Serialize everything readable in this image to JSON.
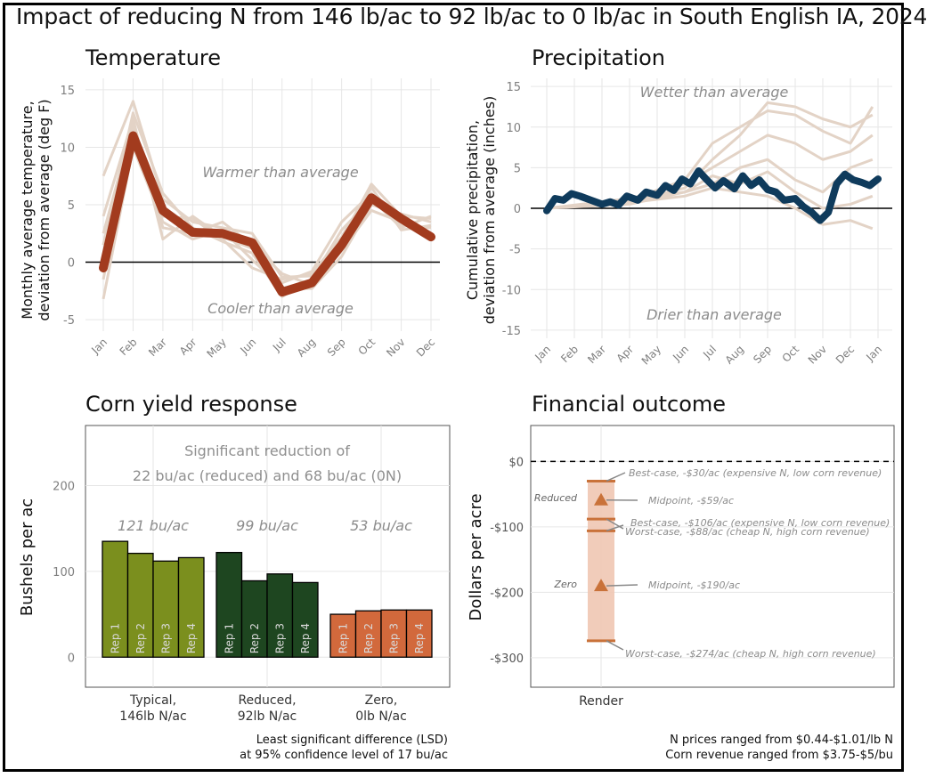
{
  "title": "Impact of reducing N from 146 lb/ac to 92 lb/ac to 0 lb/ac in South English IA, 2024",
  "colors": {
    "temp_main": "#a23b1e",
    "temp_hist": "#e3d3c6",
    "precip_main": "#0f3b5c",
    "precip_hist": "#e3d3c6",
    "typical": "#7b8f1e",
    "reduced": "#1e4620",
    "zero": "#d2693c",
    "fin_band": "#f0c7b2",
    "fin_mark": "#c9723a",
    "annot_text": "#8c8c8c"
  },
  "chart_data": [
    {
      "id": "temperature",
      "type": "line",
      "title": "Temperature",
      "ylabel": [
        "Monthly average temperature,",
        "deviation from average (deg F)"
      ],
      "xlabel": "",
      "categories": [
        "Jan",
        "Feb",
        "Mar",
        "Apr",
        "May",
        "Jun",
        "Jul",
        "Aug",
        "Sep",
        "Oct",
        "Nov",
        "Dec"
      ],
      "yticks": [
        15,
        10,
        5,
        0,
        -5
      ],
      "ytick_labels": [
        "15",
        "10",
        "5",
        "0",
        "-5"
      ],
      "ylim": [
        -6,
        16
      ],
      "grid": true,
      "series": [
        {
          "values": [
            -0.5,
            11,
            4.5,
            2.6,
            2.5,
            1.7,
            -2.6,
            -1.8,
            1.5,
            5.6,
            3.8,
            2.2
          ]
        }
      ],
      "background_series": [
        [
          7.5,
          14,
          5.5,
          3.5,
          3.0,
          2.5,
          -1.3,
          -1.2,
          2.0,
          6.8,
          4.0,
          3.8
        ],
        [
          4.0,
          12.5,
          2.0,
          4.0,
          2.2,
          1.2,
          -1.8,
          -0.8,
          3.5,
          6.0,
          3.2,
          3.0
        ],
        [
          -3.2,
          10,
          3.5,
          2.0,
          2.8,
          0.2,
          -2.2,
          -2.3,
          0.5,
          5.0,
          4.2,
          3.5
        ],
        [
          1.5,
          13,
          6.0,
          3.0,
          1.8,
          0.8,
          -3.0,
          -1.5,
          2.8,
          5.5,
          3.0,
          4.0
        ],
        [
          -1.5,
          11.8,
          3.0,
          2.5,
          3.5,
          1.5,
          -1.0,
          -2.0,
          1.0,
          4.5,
          3.5,
          2.5
        ],
        [
          2.5,
          12.0,
          4.0,
          3.8,
          2.0,
          -0.5,
          -1.5,
          -1.0,
          2.2,
          6.5,
          2.8,
          3.2
        ]
      ],
      "annotations": [
        "Warmer than average",
        "Cooler than average"
      ]
    },
    {
      "id": "precipitation",
      "type": "line",
      "title": "Precipitation",
      "ylabel": [
        "Cumulative precipitation,",
        "deviation from average (inches)"
      ],
      "xlabel": "",
      "x_ticks": [
        "Jan",
        "Feb",
        "Mar",
        "Apr",
        "May",
        "Jun",
        "Jul",
        "Aug",
        "Sep",
        "Oct",
        "Nov",
        "Dec",
        "Jan"
      ],
      "yticks": [
        15,
        10,
        5,
        0,
        -5,
        -10,
        -15
      ],
      "ytick_labels": [
        "15",
        "10",
        "5",
        "0",
        "-5",
        "-10",
        "-15"
      ],
      "ylim": [
        -16,
        16
      ],
      "grid": true,
      "series": [
        {
          "x": [
            0,
            0.3,
            0.6,
            0.9,
            1.2,
            1.6,
            2.0,
            2.3,
            2.6,
            2.9,
            3.3,
            3.6,
            4.0,
            4.3,
            4.6,
            4.9,
            5.2,
            5.5,
            5.8,
            6.1,
            6.4,
            6.8,
            7.1,
            7.4,
            7.7,
            8.0,
            8.3,
            8.6,
            9.0,
            9.3,
            9.6,
            9.9,
            10.2,
            10.5,
            10.8,
            11.1,
            11.4,
            11.7,
            12.0
          ],
          "values": [
            -0.3,
            1.2,
            1.0,
            1.8,
            1.5,
            1.0,
            0.5,
            0.8,
            0.4,
            1.5,
            1.0,
            2.0,
            1.6,
            2.8,
            2.2,
            3.6,
            3.0,
            4.6,
            3.5,
            2.5,
            3.4,
            2.4,
            4.0,
            2.8,
            3.5,
            2.3,
            2.0,
            1.0,
            1.2,
            0.2,
            -0.5,
            -1.5,
            -0.5,
            3.0,
            4.2,
            3.5,
            3.2,
            2.8,
            3.6
          ]
        }
      ],
      "background_series": [
        [
          [
            0,
            0
          ],
          [
            3,
            1.0
          ],
          [
            5,
            3.5
          ],
          [
            6,
            8
          ],
          [
            7,
            10
          ],
          [
            8,
            12
          ],
          [
            9,
            11.5
          ],
          [
            10,
            9.5
          ],
          [
            11,
            8
          ],
          [
            11.8,
            12.5
          ]
        ],
        [
          [
            0,
            0
          ],
          [
            3,
            0.8
          ],
          [
            5,
            2.5
          ],
          [
            6,
            6
          ],
          [
            7,
            9
          ],
          [
            8,
            13
          ],
          [
            9,
            12.5
          ],
          [
            10,
            11
          ],
          [
            11,
            10
          ],
          [
            11.8,
            11.5
          ]
        ],
        [
          [
            0,
            0
          ],
          [
            3,
            1.2
          ],
          [
            5,
            3
          ],
          [
            6,
            5
          ],
          [
            7,
            7
          ],
          [
            8,
            9
          ],
          [
            9,
            8
          ],
          [
            10,
            6
          ],
          [
            11,
            7
          ],
          [
            11.8,
            9
          ]
        ],
        [
          [
            0,
            0
          ],
          [
            3,
            0.5
          ],
          [
            5,
            2
          ],
          [
            6,
            3
          ],
          [
            7,
            5
          ],
          [
            8,
            6
          ],
          [
            9,
            3.5
          ],
          [
            10,
            2
          ],
          [
            11,
            5
          ],
          [
            11.8,
            6
          ]
        ],
        [
          [
            0,
            0
          ],
          [
            3,
            1.0
          ],
          [
            5,
            2
          ],
          [
            6,
            4
          ],
          [
            7,
            3
          ],
          [
            8,
            4.5
          ],
          [
            9,
            2
          ],
          [
            10,
            0
          ],
          [
            11,
            0.5
          ],
          [
            11.8,
            1.5
          ]
        ],
        [
          [
            0,
            0
          ],
          [
            3,
            0.7
          ],
          [
            5,
            1.5
          ],
          [
            6,
            2.5
          ],
          [
            7,
            2
          ],
          [
            8,
            1.5
          ],
          [
            9,
            0
          ],
          [
            10,
            -2
          ],
          [
            11,
            -1.5
          ],
          [
            11.8,
            -2.5
          ]
        ]
      ],
      "annotations": [
        "Wetter than average",
        "Drier than average"
      ]
    },
    {
      "id": "corn-yield",
      "type": "bar",
      "title": "Corn yield response",
      "ylabel": "Bushels per ac",
      "yticks": [
        200,
        100,
        0
      ],
      "ytick_labels": [
        "200",
        "100",
        "0"
      ],
      "ylim": [
        -35,
        270
      ],
      "groups": [
        {
          "label": [
            "Typical,",
            "146lb N/ac"
          ],
          "mean_label": "121 bu/ac",
          "color": "typical",
          "reps": [
            "Rep 1",
            "Rep 2",
            "Rep 3",
            "Rep 4"
          ],
          "values": [
            135,
            121,
            112,
            116
          ]
        },
        {
          "label": [
            "Reduced,",
            "92lb N/ac"
          ],
          "mean_label": "99 bu/ac",
          "color": "reduced",
          "reps": [
            "Rep 1",
            "Rep 2",
            "Rep 3",
            "Rep 4"
          ],
          "values": [
            122,
            89,
            97,
            87
          ]
        },
        {
          "label": [
            "Zero,",
            "0lb N/ac"
          ],
          "mean_label": "53 bu/ac",
          "color": "zero",
          "reps": [
            "Rep 1",
            "Rep 2",
            "Rep 3",
            "Rep 4"
          ],
          "values": [
            50,
            54,
            55,
            55
          ]
        }
      ],
      "annotation": [
        "Significant reduction of",
        "22 bu/ac (reduced) and 68 bu/ac (0N)"
      ],
      "footnote": [
        "Least significant difference (LSD)",
        "at 95% confidence level of 17 bu/ac"
      ]
    },
    {
      "id": "financial",
      "type": "range",
      "title": "Financial outcome",
      "ylabel": "Dollars per acre",
      "x_category": "Render",
      "yticks": [
        0,
        -100,
        -200,
        -300
      ],
      "ytick_labels": [
        "$0",
        "-$100",
        "-$200",
        "-$300"
      ],
      "ylim": [
        -345,
        55
      ],
      "ranges": [
        {
          "label": "Reduced",
          "best": -30,
          "mid": -59,
          "worst": -88,
          "best_text": "Best-case, -$30/ac (expensive N, low corn revenue)",
          "mid_text": "Midpoint, -$59/ac",
          "worst_text": "Worst-case, -$88/ac (cheap N,  high corn revenue)"
        },
        {
          "label": "Zero",
          "best": -106,
          "mid": -190,
          "worst": -274,
          "best_text": "Best-case, -$106/ac (expensive N, low corn revenue)",
          "mid_text": "Midpoint, -$190/ac",
          "worst_text": "Worst-case, -$274/ac (cheap N,  high corn revenue)"
        }
      ],
      "footnote": [
        "N prices ranged from $0.44-$1.01/lb N",
        "Corn revenue ranged from $3.75-$5/bu"
      ]
    }
  ]
}
